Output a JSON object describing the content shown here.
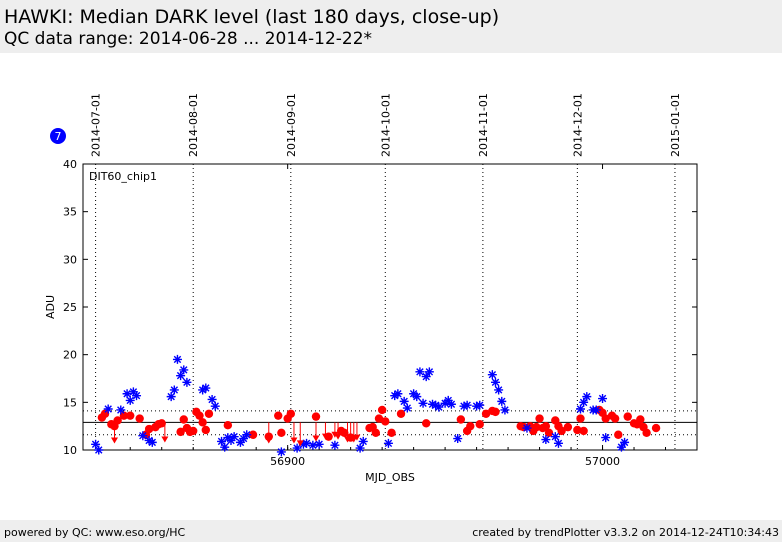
{
  "header": {
    "title": "HAWKI: Median DARK level (last 180 days, close-up)",
    "subtitle": "QC data range: 2014-06-28 ... 2014-12-22*"
  },
  "badge": {
    "text": "7",
    "color": "#0000ff"
  },
  "footer": {
    "left": "powered by QC: www.eso.org/HC",
    "right": "created by trendPlotter v3.3.2 on 2014-12-24T10:34:43"
  },
  "chart_data": {
    "type": "scatter",
    "panel_label": "DIT60_chip1",
    "xlabel": "MJD_OBS",
    "ylabel": "ADU",
    "xlim": [
      56835,
      57030
    ],
    "ylim": [
      10,
      40
    ],
    "x_ticks": [
      56900,
      57000
    ],
    "y_ticks": [
      10,
      15,
      20,
      25,
      30,
      35,
      40
    ],
    "top_axis_dates": [
      {
        "label": "2014-07-01",
        "mjd": 56839
      },
      {
        "label": "2014-08-01",
        "mjd": 56870
      },
      {
        "label": "2014-09-01",
        "mjd": 56901
      },
      {
        "label": "2014-10-01",
        "mjd": 56931
      },
      {
        "label": "2014-11-01",
        "mjd": 56962
      },
      {
        "label": "2014-12-01",
        "mjd": 56992
      },
      {
        "label": "2015-01-01",
        "mjd": 57023
      }
    ],
    "reference_lines": {
      "median": 12.9,
      "upper": 14.1,
      "lower": 11.6
    },
    "grid": "dotted vertical lines at month starts",
    "series": [
      {
        "marker": "circle",
        "color": "#ff0000",
        "points": [
          [
            56841,
            13.4
          ],
          [
            56842,
            13.8
          ],
          [
            56844,
            12.7
          ],
          [
            56845,
            12.5
          ],
          [
            56846,
            13.1
          ],
          [
            56848,
            13.6
          ],
          [
            56850,
            13.6
          ],
          [
            56853,
            13.3
          ],
          [
            56855,
            11.6
          ],
          [
            56856,
            12.2
          ],
          [
            56858,
            12.4
          ],
          [
            56859,
            12.7
          ],
          [
            56860,
            12.8
          ],
          [
            56866,
            11.9
          ],
          [
            56867,
            13.2
          ],
          [
            56868,
            12.3
          ],
          [
            56869,
            11.9
          ],
          [
            56870,
            12.0
          ],
          [
            56871,
            14.0
          ],
          [
            56872,
            13.6
          ],
          [
            56873,
            12.9
          ],
          [
            56874,
            12.1
          ],
          [
            56875,
            13.8
          ],
          [
            56881,
            12.6
          ],
          [
            56889,
            11.6
          ],
          [
            56894,
            11.4
          ],
          [
            56897,
            13.6
          ],
          [
            56898,
            11.8
          ],
          [
            56900,
            13.3
          ],
          [
            56901,
            13.8
          ],
          [
            56909,
            13.5
          ],
          [
            56913,
            11.4
          ],
          [
            56917,
            12.0
          ],
          [
            56918,
            11.8
          ],
          [
            56920,
            11.3
          ],
          [
            56926,
            12.3
          ],
          [
            56927,
            12.4
          ],
          [
            56928,
            11.8
          ],
          [
            56929,
            13.3
          ],
          [
            56930,
            14.2
          ],
          [
            56931,
            13.0
          ],
          [
            56933,
            11.8
          ],
          [
            56936,
            13.8
          ],
          [
            56944,
            12.8
          ],
          [
            56955,
            13.2
          ],
          [
            56957,
            12.0
          ],
          [
            56958,
            12.5
          ],
          [
            56961,
            12.7
          ],
          [
            56963,
            13.8
          ],
          [
            56965,
            14.1
          ],
          [
            56966,
            14.0
          ],
          [
            56974,
            12.5
          ],
          [
            56975,
            12.4
          ],
          [
            56977,
            12.5
          ],
          [
            56978,
            12.0
          ],
          [
            56979,
            12.4
          ],
          [
            56980,
            13.3
          ],
          [
            56981,
            12.3
          ],
          [
            56982,
            12.5
          ],
          [
            56983,
            11.8
          ],
          [
            56985,
            13.1
          ],
          [
            56986,
            12.5
          ],
          [
            56987,
            12.0
          ],
          [
            56989,
            12.4
          ],
          [
            56992,
            12.1
          ],
          [
            56993,
            13.3
          ],
          [
            56994,
            12.0
          ],
          [
            56999,
            14.2
          ],
          [
            57000,
            13.9
          ],
          [
            57001,
            13.3
          ],
          [
            57003,
            13.6
          ],
          [
            57004,
            13.3
          ],
          [
            57005,
            11.6
          ],
          [
            57008,
            13.5
          ],
          [
            57010,
            12.8
          ],
          [
            57011,
            12.7
          ],
          [
            57012,
            13.2
          ],
          [
            57013,
            12.4
          ],
          [
            57014,
            11.8
          ],
          [
            57017,
            12.3
          ]
        ]
      },
      {
        "marker": "star",
        "color": "#0000ff",
        "points": [
          [
            56839,
            10.6
          ],
          [
            56840,
            10.0
          ],
          [
            56843,
            14.3
          ],
          [
            56847,
            14.2
          ],
          [
            56849,
            15.9
          ],
          [
            56850,
            15.2
          ],
          [
            56851,
            16.1
          ],
          [
            56852,
            15.7
          ],
          [
            56854,
            11.5
          ],
          [
            56856,
            11.0
          ],
          [
            56857,
            10.8
          ],
          [
            56863,
            15.6
          ],
          [
            56864,
            16.3
          ],
          [
            56865,
            19.5
          ],
          [
            56866,
            17.8
          ],
          [
            56867,
            18.4
          ],
          [
            56868,
            17.1
          ],
          [
            56873,
            16.3
          ],
          [
            56874,
            16.5
          ],
          [
            56876,
            15.3
          ],
          [
            56877,
            14.6
          ],
          [
            56879,
            10.9
          ],
          [
            56880,
            10.3
          ],
          [
            56881,
            11.3
          ],
          [
            56882,
            11.0
          ],
          [
            56883,
            11.4
          ],
          [
            56885,
            10.8
          ],
          [
            56886,
            11.2
          ],
          [
            56887,
            11.6
          ],
          [
            56898,
            9.8
          ],
          [
            56903,
            10.2
          ],
          [
            56905,
            10.6
          ],
          [
            56906,
            10.7
          ],
          [
            56908,
            10.5
          ],
          [
            56910,
            10.6
          ],
          [
            56915,
            10.5
          ],
          [
            56923,
            10.2
          ],
          [
            56924,
            10.9
          ],
          [
            56932,
            10.7
          ],
          [
            56934,
            15.7
          ],
          [
            56935,
            15.9
          ],
          [
            56937,
            15.1
          ],
          [
            56938,
            14.4
          ],
          [
            56940,
            15.9
          ],
          [
            56941,
            15.6
          ],
          [
            56942,
            18.2
          ],
          [
            56943,
            14.9
          ],
          [
            56944,
            17.7
          ],
          [
            56945,
            18.2
          ],
          [
            56946,
            14.8
          ],
          [
            56947,
            14.7
          ],
          [
            56948,
            14.5
          ],
          [
            56950,
            14.9
          ],
          [
            56951,
            15.2
          ],
          [
            56952,
            14.8
          ],
          [
            56954,
            11.2
          ],
          [
            56956,
            14.6
          ],
          [
            56957,
            14.7
          ],
          [
            56960,
            14.6
          ],
          [
            56961,
            14.7
          ],
          [
            56965,
            17.9
          ],
          [
            56966,
            17.1
          ],
          [
            56967,
            16.3
          ],
          [
            56968,
            15.1
          ],
          [
            56969,
            14.2
          ],
          [
            56976,
            12.3
          ],
          [
            56982,
            11.1
          ],
          [
            56985,
            11.4
          ],
          [
            56986,
            10.7
          ],
          [
            56993,
            14.3
          ],
          [
            56994,
            15.0
          ],
          [
            56995,
            15.6
          ],
          [
            56997,
            14.2
          ],
          [
            56998,
            14.2
          ],
          [
            57000,
            15.4
          ],
          [
            57001,
            11.3
          ],
          [
            57006,
            10.3
          ],
          [
            57007,
            10.8
          ]
        ]
      },
      {
        "marker": "triangle-down",
        "color": "#ff0000",
        "points": [
          [
            56845,
            11.0
          ],
          [
            56861,
            11.1
          ],
          [
            56894,
            11.0
          ],
          [
            56902,
            11.0
          ],
          [
            56904,
            10.7
          ],
          [
            56909,
            11.2
          ],
          [
            56912,
            11.4
          ],
          [
            56915,
            11.6
          ],
          [
            56916,
            11.4
          ],
          [
            56919,
            11.1
          ],
          [
            56920,
            11.2
          ],
          [
            56921,
            11.1
          ],
          [
            56922,
            11.3
          ]
        ]
      }
    ]
  }
}
